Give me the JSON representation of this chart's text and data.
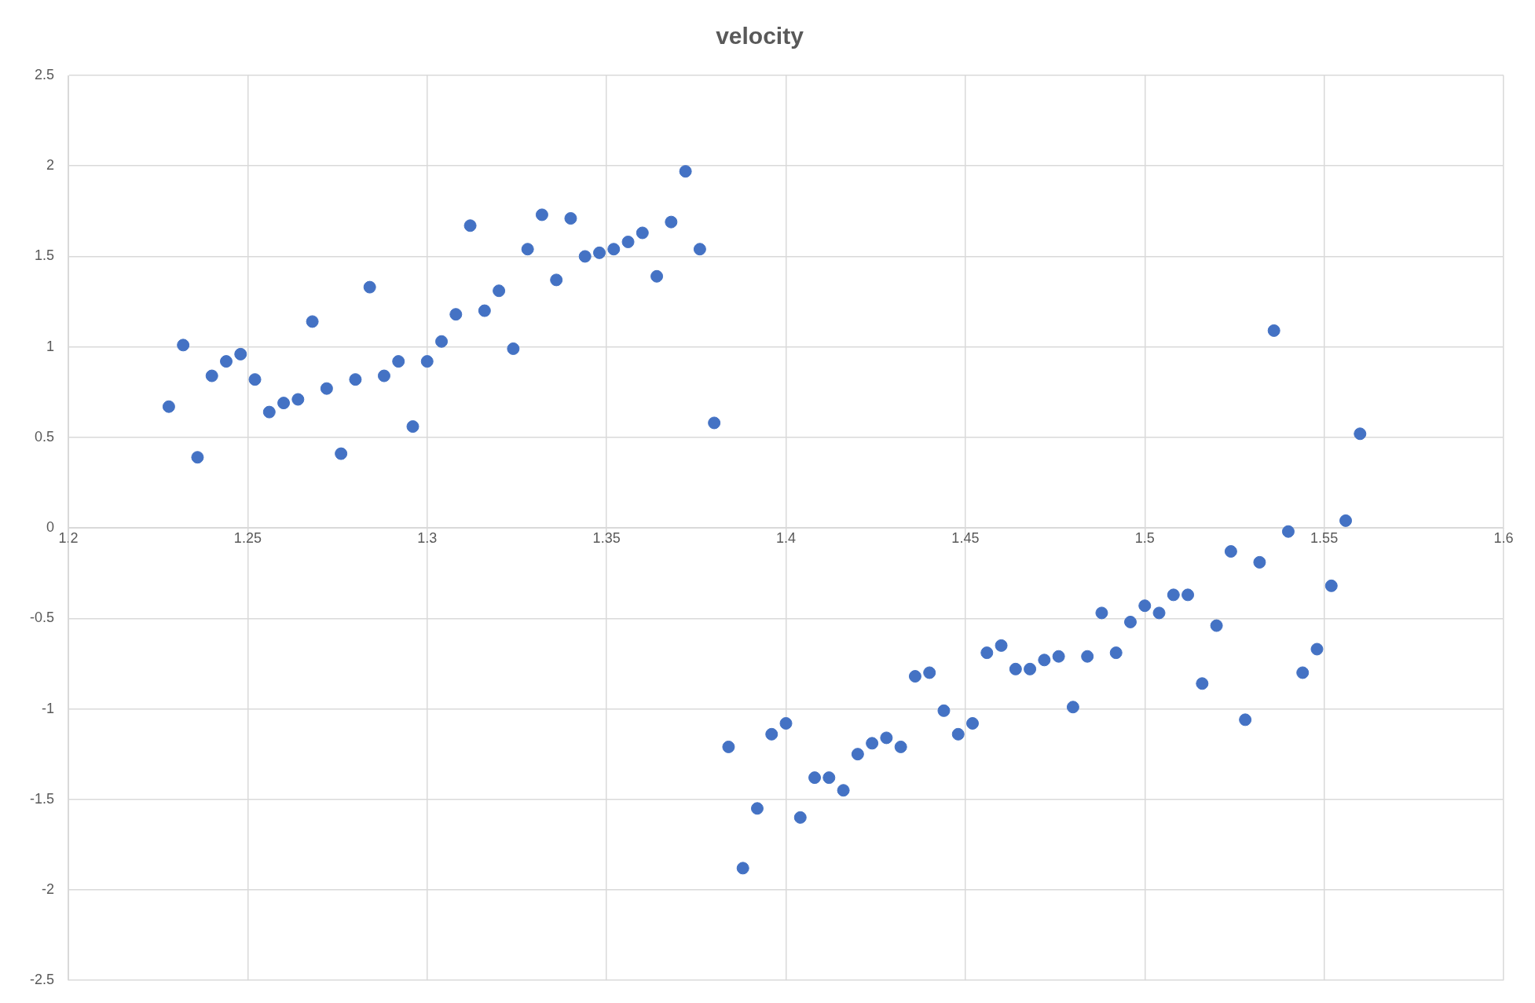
{
  "chart_data": {
    "type": "scatter",
    "title": "velocity",
    "marker": "circle",
    "grid": true,
    "legend": false,
    "xlim": [
      1.2,
      1.6
    ],
    "xticks": [
      1.2,
      1.25,
      1.3,
      1.35,
      1.4,
      1.45,
      1.5,
      1.55,
      1.6
    ],
    "ylim": [
      -2.5,
      2.5
    ],
    "yticks": [
      -2.5,
      -2,
      -1.5,
      -1,
      -0.5,
      0,
      0.5,
      1,
      1.5,
      2,
      2.5
    ],
    "series": [
      {
        "color": "#4472c4",
        "x": [
          1.228,
          1.232,
          1.236,
          1.24,
          1.244,
          1.248,
          1.252,
          1.256,
          1.26,
          1.264,
          1.268,
          1.272,
          1.276,
          1.28,
          1.284,
          1.288,
          1.292,
          1.296,
          1.3,
          1.304,
          1.308,
          1.312,
          1.316,
          1.32,
          1.324,
          1.328,
          1.332,
          1.336,
          1.34,
          1.344,
          1.348,
          1.352,
          1.356,
          1.36,
          1.364,
          1.368,
          1.372,
          1.376,
          1.38,
          1.384,
          1.388,
          1.392,
          1.396,
          1.4,
          1.404,
          1.408,
          1.412,
          1.416,
          1.42,
          1.424,
          1.428,
          1.432,
          1.436,
          1.44,
          1.444,
          1.448,
          1.452,
          1.456,
          1.46,
          1.464,
          1.468,
          1.472,
          1.476,
          1.48,
          1.484,
          1.488,
          1.492,
          1.496,
          1.5,
          1.504,
          1.508,
          1.512,
          1.516,
          1.52,
          1.524,
          1.528,
          1.532,
          1.536,
          1.54,
          1.544,
          1.548,
          1.552,
          1.556,
          1.56
        ],
        "values": [
          0.67,
          1.01,
          0.39,
          0.84,
          0.92,
          0.96,
          0.82,
          0.64,
          0.69,
          0.71,
          1.14,
          0.77,
          0.41,
          0.82,
          1.33,
          0.84,
          0.92,
          0.56,
          0.92,
          1.03,
          1.18,
          1.67,
          1.2,
          1.31,
          0.99,
          1.54,
          1.73,
          1.37,
          1.71,
          1.5,
          1.52,
          1.54,
          1.58,
          1.63,
          1.39,
          1.69,
          1.97,
          1.54,
          0.58,
          -1.21,
          -1.88,
          -1.55,
          -1.14,
          -1.08,
          -1.6,
          -1.38,
          -1.38,
          -1.45,
          -1.25,
          -1.19,
          -1.16,
          -1.21,
          -0.82,
          -0.8,
          -1.01,
          -1.14,
          -1.08,
          -0.69,
          -0.65,
          -0.78,
          -0.78,
          -0.73,
          -0.71,
          -0.99,
          -0.71,
          -0.47,
          -0.69,
          -0.52,
          -0.43,
          -0.47,
          -0.37,
          -0.37,
          -0.86,
          -0.54,
          -0.13,
          -1.06,
          -0.19,
          1.09,
          -0.02,
          -0.8,
          -0.67,
          -0.32,
          0.04,
          0.52
        ]
      }
    ]
  }
}
